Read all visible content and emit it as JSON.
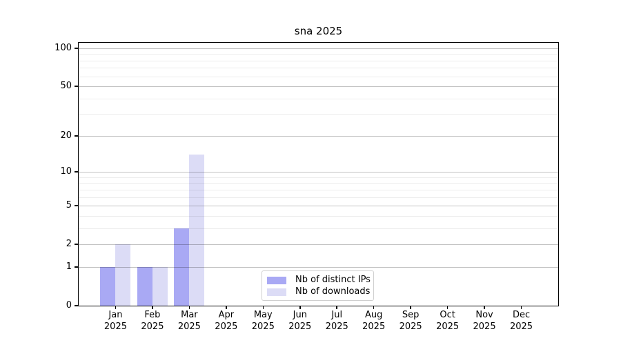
{
  "title": "sna 2025",
  "colors": {
    "series_distinct_ips": "#a9a9f4",
    "series_downloads": "#dcdcf6",
    "axis": "#000000",
    "major_grid": "#c2c2c2",
    "minor_grid": "#e9e9e9",
    "legend_border": "#cfcfcf"
  },
  "legend": {
    "items": [
      {
        "label": "Nb of distinct IPs"
      },
      {
        "label": "Nb of downloads"
      }
    ]
  },
  "chart_data": {
    "type": "bar",
    "title": "sna 2025",
    "categories": [
      "Jan",
      "Feb",
      "Mar",
      "Apr",
      "May",
      "Jun",
      "Jul",
      "Aug",
      "Sep",
      "Oct",
      "Nov",
      "Dec"
    ],
    "year_label": "2025",
    "series": [
      {
        "name": "Nb of distinct IPs",
        "color": "#a9a9f4",
        "values": [
          1,
          1,
          3,
          0,
          0,
          0,
          0,
          0,
          0,
          0,
          0,
          0
        ]
      },
      {
        "name": "Nb of downloads",
        "color": "#dcdcf6",
        "values": [
          2,
          1,
          14,
          0,
          0,
          0,
          0,
          0,
          0,
          0,
          0,
          0
        ]
      }
    ],
    "xlabel": "",
    "ylabel": "",
    "yscale": "log10(1+x)",
    "y_major_ticks": [
      0,
      1,
      2,
      5,
      10,
      20,
      50,
      100
    ],
    "y_minor_ticks": [
      3,
      4,
      6,
      7,
      8,
      9,
      30,
      40,
      60,
      70,
      80,
      90
    ],
    "ylim": [
      0,
      110.5
    ],
    "xlim_slots": [
      -1,
      12
    ],
    "grid": true,
    "legend_position": "lower-center"
  }
}
